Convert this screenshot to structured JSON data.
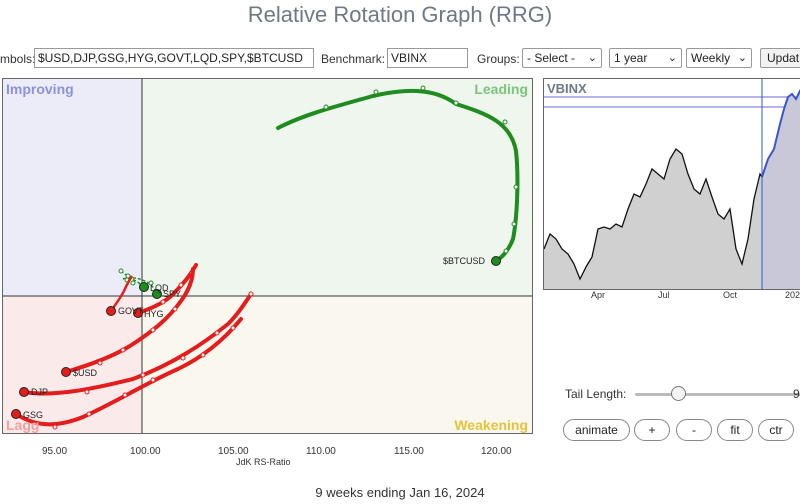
{
  "header": {
    "title": "Relative Rotation Graph (RRG)"
  },
  "toolbar": {
    "symbols_label": "mbols:",
    "symbols_value": "$USD,DJP,GSG,HYG,GOVT,LQD,SPY,$BTCUSD",
    "benchmark_label": "Benchmark:",
    "benchmark_value": "VBINX",
    "groups_label": "Groups:",
    "groups_value": "- Select -",
    "period_value": "1 year",
    "frequency_value": "Weekly",
    "update_label": "Updat"
  },
  "rrg": {
    "quadrants": {
      "improving": "Improving",
      "leading": "Leading",
      "weakening": "Weakening",
      "lagging": "Lagg"
    },
    "quadrant_colors": {
      "improving": "#ececf9",
      "leading": "#eef6ee",
      "weakening": "#f9f7ee",
      "lagging": "#fbeaea"
    },
    "x_axis_label": "JdK RS-Ratio",
    "x_ticks": [
      "95.00",
      "100.00",
      "105.00",
      "110.00",
      "115.00",
      "120.00"
    ],
    "tail_colors": {
      "green": "#1e8c1e",
      "red": "#e31c1c"
    },
    "symbols": [
      {
        "label": "$BTCUSD",
        "color": "green"
      },
      {
        "label": "LQD",
        "color": "green"
      },
      {
        "label": "SPY",
        "color": "green"
      },
      {
        "label": "GOVT",
        "color": "red"
      },
      {
        "label": "HYG",
        "color": "red"
      },
      {
        "label": "$USD",
        "color": "red"
      },
      {
        "label": "DJP",
        "color": "red"
      },
      {
        "label": "GSG",
        "color": "red"
      }
    ]
  },
  "mini_chart": {
    "title": "VBINX",
    "x_ticks": [
      "Apr",
      "Jul",
      "Oct",
      "202"
    ]
  },
  "controls": {
    "tail_length_label": "Tail Length:",
    "tail_length_value": "9",
    "buttons": {
      "animate": "animate",
      "plus": "+",
      "minus": "-",
      "fit": "fit",
      "center": "ctr"
    }
  },
  "footer": {
    "period_text": "9 weeks ending Jan 16, 2024"
  }
}
